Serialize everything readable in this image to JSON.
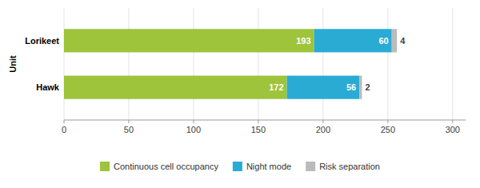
{
  "chart_data": {
    "type": "bar",
    "orientation": "horizontal",
    "stacked": true,
    "categories": [
      "Hawk",
      "Lorikeet"
    ],
    "series": [
      {
        "name": "Continuous cell occupancy",
        "color": "#9DC43B",
        "values": [
          172,
          193
        ]
      },
      {
        "name": "Night mode",
        "color": "#29ABD4",
        "values": [
          56,
          60
        ]
      },
      {
        "name": "Risk separation",
        "color": "#BBBBBB",
        "values": [
          2,
          4
        ]
      }
    ],
    "xlim": [
      0,
      310
    ],
    "xticks": [
      0,
      50,
      100,
      150,
      200,
      250,
      300
    ],
    "ylabel": "Unit",
    "grid": true,
    "legend": "bottom",
    "data_labels": true
  }
}
